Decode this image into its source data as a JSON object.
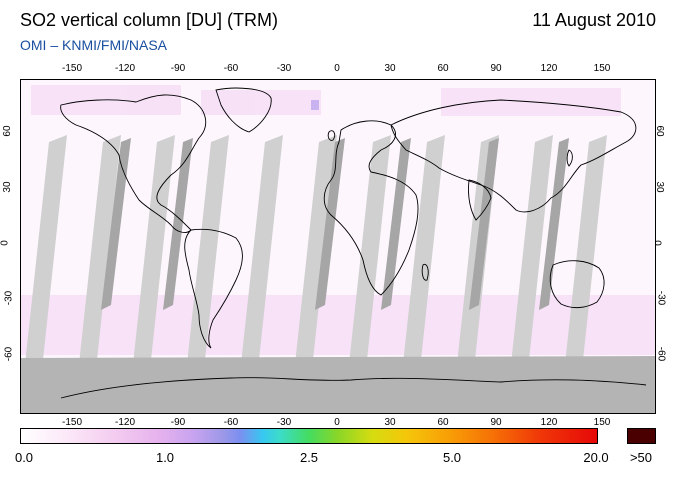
{
  "header": {
    "title": "SO2 vertical column [DU] (TRM)",
    "subtitle": "OMI  –  KNMI/FMI/NASA",
    "date": "11 August 2010"
  },
  "map": {
    "longitude_ticks": [
      "-150",
      "-120",
      "-90",
      "-60",
      "-30",
      "0",
      "30",
      "60",
      "90",
      "120",
      "150"
    ],
    "latitude_ticks": [
      "60",
      "30",
      "0",
      "-30",
      "-60"
    ],
    "colors": {
      "no_data_swath": "#d0d0d0",
      "overlap_swath": "#a6a6a6",
      "polar_night": "#b4b4b4",
      "coastline": "#000000",
      "low_so2": "#f4d8f4"
    }
  },
  "colorbar": {
    "labels": [
      "0.0",
      "1.0",
      "2.5",
      "5.0",
      "20.0"
    ],
    "overflow_label": ">50",
    "overflow_color": "#4a0000"
  }
}
